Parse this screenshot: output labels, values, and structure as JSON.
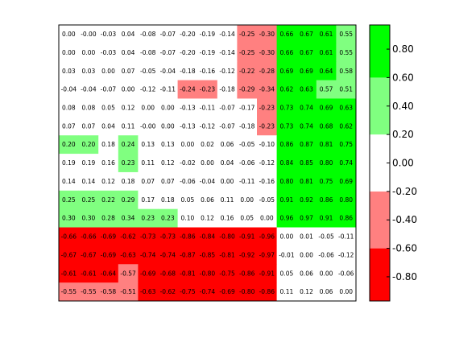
{
  "chart_data": {
    "type": "heatmap",
    "title": "",
    "xlabel": "",
    "ylabel": "",
    "bins": [
      {
        "min": -1.0,
        "max": -0.6,
        "color": "#ff0000"
      },
      {
        "min": -0.6,
        "max": -0.2,
        "color": "#ff8080"
      },
      {
        "min": -0.2,
        "max": 0.2,
        "color": "#ffffff"
      },
      {
        "min": 0.2,
        "max": 0.6,
        "color": "#80ff80"
      },
      {
        "min": 0.6,
        "max": 1.0,
        "color": "#00ff00"
      }
    ],
    "colorbar": {
      "range": [
        -0.97,
        0.97
      ],
      "ticks": [
        "0.80",
        "0.60",
        "0.40",
        "0.20",
        "0.00",
        "-0.20",
        "-0.40",
        "-0.60",
        "-0.80"
      ],
      "tick_values": [
        0.8,
        0.6,
        0.4,
        0.2,
        0.0,
        -0.2,
        -0.4,
        -0.6,
        -0.8
      ]
    },
    "grid": false,
    "matrix": [
      [
        "0.00",
        "-0.00",
        "-0.03",
        "0.04",
        "-0.08",
        "-0.07",
        "-0.20",
        "-0.19",
        "-0.14",
        "-0.25",
        "-0.30",
        "0.66",
        "0.67",
        "0.61",
        "0.55"
      ],
      [
        "0.00",
        "0.00",
        "-0.03",
        "0.04",
        "-0.08",
        "-0.07",
        "-0.20",
        "-0.19",
        "-0.14",
        "-0.25",
        "-0.30",
        "0.66",
        "0.67",
        "0.61",
        "0.55"
      ],
      [
        "0.03",
        "0.03",
        "0.00",
        "0.07",
        "-0.05",
        "-0.04",
        "-0.18",
        "-0.16",
        "-0.12",
        "-0.22",
        "-0.28",
        "0.69",
        "0.69",
        "0.64",
        "0.58"
      ],
      [
        "-0.04",
        "-0.04",
        "-0.07",
        "0.00",
        "-0.12",
        "-0.11",
        "-0.24",
        "-0.23",
        "-0.18",
        "-0.29",
        "-0.34",
        "0.62",
        "0.63",
        "0.57",
        "0.51"
      ],
      [
        "0.08",
        "0.08",
        "0.05",
        "0.12",
        "0.00",
        "0.00",
        "-0.13",
        "-0.11",
        "-0.07",
        "-0.17",
        "-0.23",
        "0.73",
        "0.74",
        "0.69",
        "0.63"
      ],
      [
        "0.07",
        "0.07",
        "0.04",
        "0.11",
        "-0.00",
        "0.00",
        "-0.13",
        "-0.12",
        "-0.07",
        "-0.18",
        "-0.23",
        "0.73",
        "0.74",
        "0.68",
        "0.62"
      ],
      [
        "0.20",
        "0.20",
        "0.18",
        "0.24",
        "0.13",
        "0.13",
        "0.00",
        "0.02",
        "0.06",
        "-0.05",
        "-0.10",
        "0.86",
        "0.87",
        "0.81",
        "0.75"
      ],
      [
        "0.19",
        "0.19",
        "0.16",
        "0.23",
        "0.11",
        "0.12",
        "-0.02",
        "0.00",
        "0.04",
        "-0.06",
        "-0.12",
        "0.84",
        "0.85",
        "0.80",
        "0.74"
      ],
      [
        "0.14",
        "0.14",
        "0.12",
        "0.18",
        "0.07",
        "0.07",
        "-0.06",
        "-0.04",
        "0.00",
        "-0.11",
        "-0.16",
        "0.80",
        "0.81",
        "0.75",
        "0.69"
      ],
      [
        "0.25",
        "0.25",
        "0.22",
        "0.29",
        "0.17",
        "0.18",
        "0.05",
        "0.06",
        "0.11",
        "0.00",
        "-0.05",
        "0.91",
        "0.92",
        "0.86",
        "0.80"
      ],
      [
        "0.30",
        "0.30",
        "0.28",
        "0.34",
        "0.23",
        "0.23",
        "0.10",
        "0.12",
        "0.16",
        "0.05",
        "0.00",
        "0.96",
        "0.97",
        "0.91",
        "0.86"
      ],
      [
        "-0.66",
        "-0.66",
        "-0.69",
        "-0.62",
        "-0.73",
        "-0.73",
        "-0.86",
        "-0.84",
        "-0.80",
        "-0.91",
        "-0.96",
        "0.00",
        "0.01",
        "-0.05",
        "-0.11"
      ],
      [
        "-0.67",
        "-0.67",
        "-0.69",
        "-0.63",
        "-0.74",
        "-0.74",
        "-0.87",
        "-0.85",
        "-0.81",
        "-0.92",
        "-0.97",
        "-0.01",
        "0.00",
        "-0.06",
        "-0.12"
      ],
      [
        "-0.61",
        "-0.61",
        "-0.64",
        "-0.57",
        "-0.69",
        "-0.68",
        "-0.81",
        "-0.80",
        "-0.75",
        "-0.86",
        "-0.91",
        "0.05",
        "0.06",
        "0.00",
        "-0.06"
      ],
      [
        "-0.55",
        "-0.55",
        "-0.58",
        "-0.51",
        "-0.63",
        "-0.62",
        "-0.75",
        "-0.74",
        "-0.69",
        "-0.80",
        "-0.86",
        "0.11",
        "0.12",
        "0.06",
        "0.00"
      ]
    ]
  }
}
